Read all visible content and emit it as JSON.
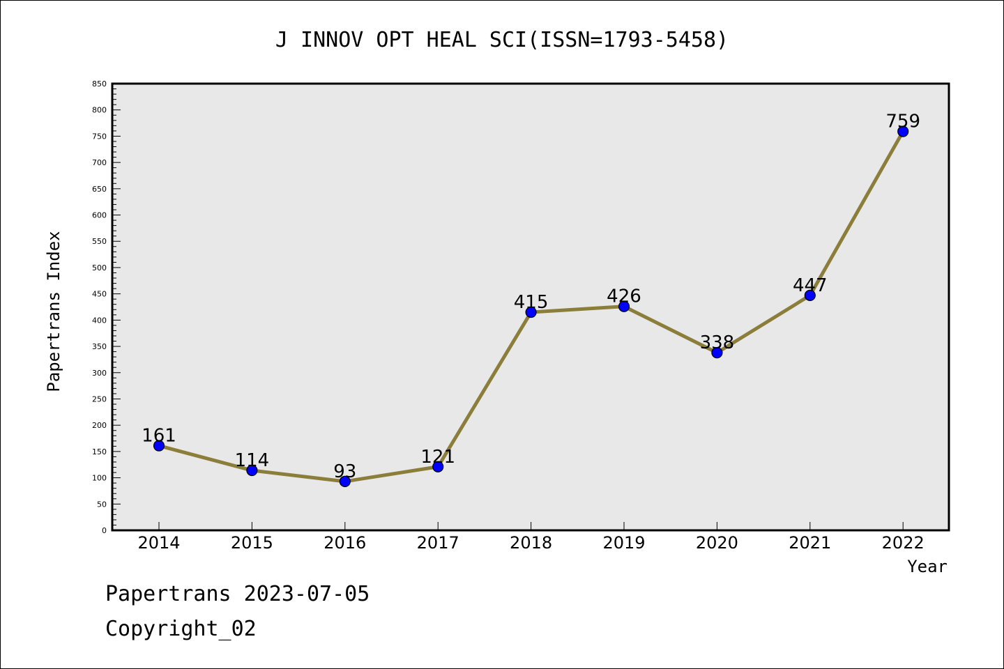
{
  "chart_data": {
    "type": "line",
    "title": "J INNOV OPT HEAL SCI(ISSN=1793-5458)",
    "xlabel": "Year",
    "ylabel": "Papertrans Index",
    "categories": [
      "2014",
      "2015",
      "2016",
      "2017",
      "2018",
      "2019",
      "2020",
      "2021",
      "2022"
    ],
    "series": [
      {
        "values": [
          161,
          114,
          93,
          121,
          415,
          426,
          338,
          447,
          759
        ]
      }
    ],
    "data_labels": [
      "161",
      "114",
      "93",
      "121",
      "415",
      "426",
      "338",
      "447",
      "759"
    ],
    "ylim": [
      0,
      850
    ],
    "yticks": [
      "0",
      "50",
      "100",
      "150",
      "200",
      "250",
      "300",
      "350",
      "400",
      "450",
      "500",
      "550",
      "600",
      "650",
      "700",
      "750",
      "800",
      "850"
    ],
    "grid": false,
    "legend": "none",
    "colors": {
      "line": "#8b7d3a",
      "marker": "#0000ff",
      "plot_background": "#e8e8e8"
    }
  },
  "footer": {
    "date_text": "Papertrans 2023-07-05",
    "copyright_text": "Copyright_02"
  }
}
